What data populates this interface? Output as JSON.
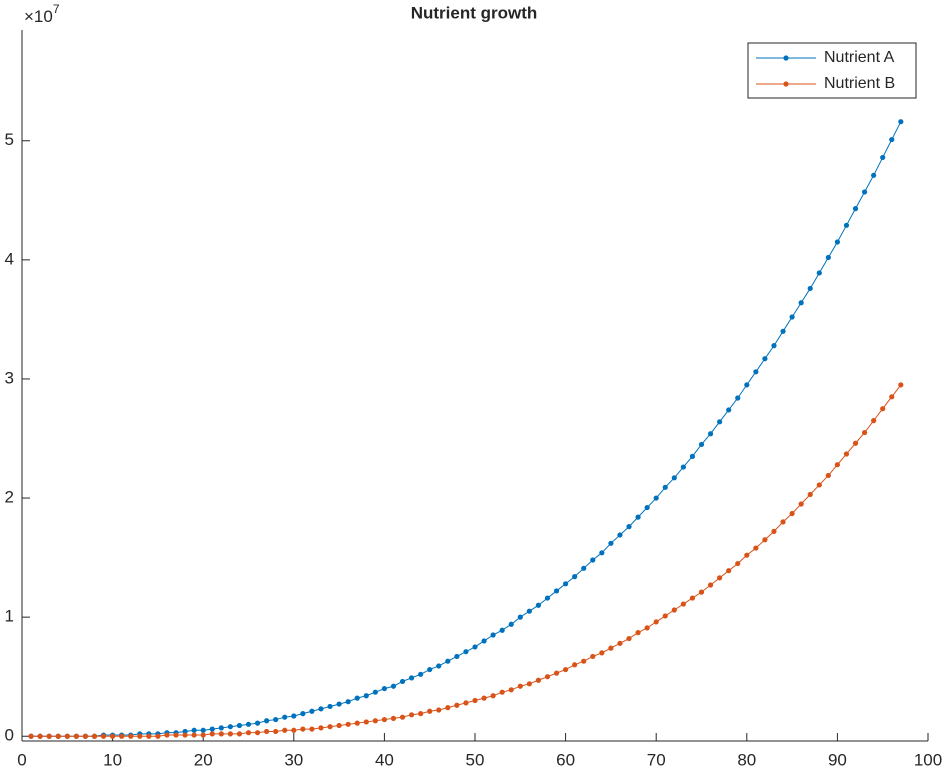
{
  "chart_data": {
    "type": "line",
    "title": "Nutrient growth",
    "y_multiplier": {
      "base": "×10",
      "exponent": "7"
    },
    "x": [
      1,
      2,
      3,
      4,
      5,
      6,
      7,
      8,
      9,
      10,
      11,
      12,
      13,
      14,
      15,
      16,
      17,
      18,
      19,
      20,
      21,
      22,
      23,
      24,
      25,
      26,
      27,
      28,
      29,
      30,
      31,
      32,
      33,
      34,
      35,
      36,
      37,
      38,
      39,
      40,
      41,
      42,
      43,
      44,
      45,
      46,
      47,
      48,
      49,
      50,
      51,
      52,
      53,
      54,
      55,
      56,
      57,
      58,
      59,
      60,
      61,
      62,
      63,
      64,
      65,
      66,
      67,
      68,
      69,
      70,
      71,
      72,
      73,
      74,
      75,
      76,
      77,
      78,
      79,
      80,
      81,
      82,
      83,
      84,
      85,
      86,
      87,
      88,
      89,
      90,
      91,
      92,
      93,
      94,
      95,
      96,
      97
    ],
    "series": [
      {
        "name": "Nutrient A",
        "color": "#0072bd",
        "values": [
          0,
          0,
          0,
          0,
          0,
          0,
          0,
          0,
          0.01,
          0.01,
          0.01,
          0.01,
          0.02,
          0.02,
          0.02,
          0.03,
          0.03,
          0.04,
          0.05,
          0.05,
          0.06,
          0.07,
          0.08,
          0.09,
          0.1,
          0.11,
          0.13,
          0.14,
          0.16,
          0.17,
          0.19,
          0.21,
          0.23,
          0.25,
          0.27,
          0.29,
          0.32,
          0.34,
          0.37,
          0.4,
          0.42,
          0.46,
          0.49,
          0.52,
          0.56,
          0.59,
          0.63,
          0.67,
          0.71,
          0.75,
          0.8,
          0.85,
          0.89,
          0.94,
          1.0,
          1.05,
          1.1,
          1.16,
          1.22,
          1.28,
          1.34,
          1.41,
          1.48,
          1.54,
          1.62,
          1.69,
          1.76,
          1.84,
          1.92,
          2.0,
          2.09,
          2.17,
          2.26,
          2.35,
          2.45,
          2.54,
          2.64,
          2.74,
          2.84,
          2.95,
          3.06,
          3.17,
          3.28,
          3.4,
          3.52,
          3.64,
          3.76,
          3.89,
          4.02,
          4.15,
          4.29,
          4.43,
          4.57,
          4.71,
          4.86,
          5.01,
          5.16
        ]
      },
      {
        "name": "Nutrient B",
        "color": "#d95319",
        "values": [
          0,
          0,
          0,
          0,
          0,
          0,
          0,
          0,
          0,
          0,
          0,
          0,
          0,
          0,
          0,
          0.01,
          0.01,
          0.01,
          0.01,
          0.01,
          0.02,
          0.02,
          0.02,
          0.02,
          0.03,
          0.03,
          0.04,
          0.04,
          0.05,
          0.05,
          0.06,
          0.06,
          0.07,
          0.08,
          0.09,
          0.1,
          0.11,
          0.12,
          0.13,
          0.14,
          0.15,
          0.16,
          0.18,
          0.19,
          0.21,
          0.22,
          0.24,
          0.26,
          0.28,
          0.3,
          0.32,
          0.34,
          0.37,
          0.39,
          0.42,
          0.44,
          0.47,
          0.5,
          0.53,
          0.56,
          0.6,
          0.63,
          0.67,
          0.7,
          0.74,
          0.78,
          0.82,
          0.87,
          0.91,
          0.96,
          1.01,
          1.06,
          1.11,
          1.16,
          1.21,
          1.27,
          1.33,
          1.39,
          1.45,
          1.52,
          1.58,
          1.65,
          1.72,
          1.8,
          1.87,
          1.95,
          2.03,
          2.11,
          2.19,
          2.28,
          2.37,
          2.46,
          2.55,
          2.65,
          2.75,
          2.85,
          2.95
        ]
      }
    ],
    "xlim": [
      0,
      100
    ],
    "xticks": [
      0,
      10,
      20,
      30,
      40,
      50,
      60,
      70,
      80,
      90,
      100
    ],
    "ylim": [
      -0.04,
      5.93
    ],
    "yticks": [
      0,
      1,
      2,
      3,
      4,
      5
    ],
    "legend": "upper right"
  }
}
